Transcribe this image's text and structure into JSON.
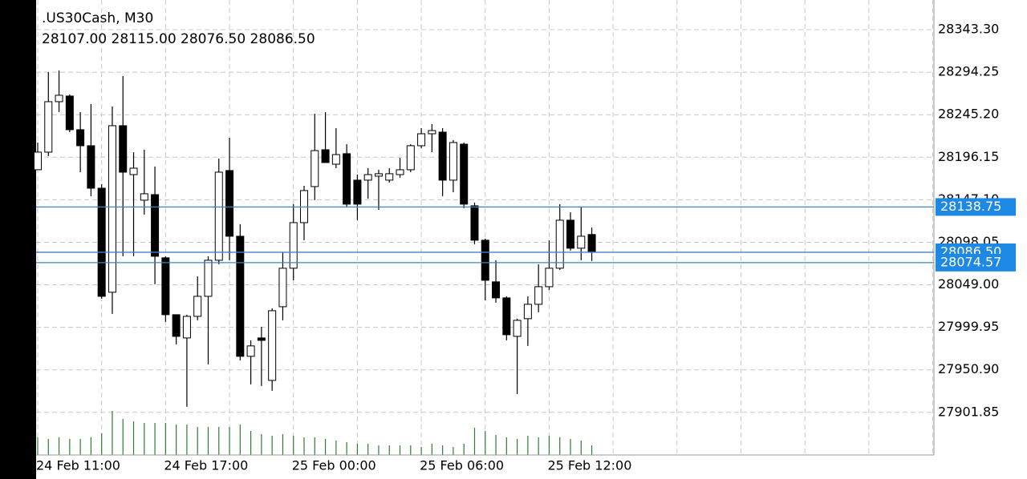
{
  "chart_data": {
    "type": "candlestick",
    "title": ".US30Cash, M30",
    "ohlc_text": "28107.00 28115.00 28076.50 28086.50",
    "categories": [
      "24 Feb 11:00",
      null,
      null,
      null,
      null,
      null,
      null,
      null,
      null,
      null,
      null,
      null,
      "24 Feb 17:00",
      null,
      null,
      null,
      null,
      null,
      null,
      null,
      null,
      null,
      null,
      null,
      "25 Feb 00:00",
      null,
      null,
      null,
      null,
      null,
      null,
      null,
      null,
      null,
      null,
      null,
      "25 Feb 06:00",
      null,
      null,
      null,
      null,
      null,
      null,
      null,
      null,
      null,
      null,
      null,
      "25 Feb 12:00",
      null,
      null,
      null,
      null
    ],
    "open": [
      28181.7,
      28202.0,
      28260.2,
      28266.7,
      28227.9,
      28209.4,
      28160.4,
      28040.4,
      28232.5,
      28176.1,
      28146.6,
      28153.0,
      28080.1,
      28014.5,
      27987.7,
      28012.6,
      28035.7,
      28077.3,
      28180.8,
      28105.0,
      27966.5,
      27987.7,
      27938.7,
      28023.7,
      28068.1,
      28120.7,
      28162.3,
      28204.8,
      28188.1,
      28200.2,
      28169.7,
      28169.7,
      28174.3,
      28169.7,
      28176.1,
      28181.7,
      28209.4,
      28223.2,
      28225.1,
      28169.7,
      28211.2,
      28140.1,
      28100.4,
      28052.4,
      28033.9,
      27989.5,
      28009.9,
      28026.5,
      28046.8,
      28068.1,
      28123.5,
      28091.2,
      28107.0
    ],
    "high": [
      28213.1,
      28294.4,
      28296.2,
      28268.5,
      28248.2,
      28257.4,
      28165.1,
      28254.6,
      28289.7,
      28202.0,
      28204.8,
      28185.4,
      28081.9,
      28014.5,
      28014.5,
      28058.8,
      28081.9,
      28194.6,
      28218.6,
      28118.9,
      27984.9,
      28000.6,
      28021.9,
      28086.5,
      28142.0,
      28163.2,
      28246.3,
      28248.2,
      28229.7,
      28211.2,
      28176.1,
      28183.5,
      28181.7,
      28183.5,
      28195.5,
      28211.2,
      28229.7,
      28234.3,
      28229.7,
      28215.9,
      28213.1,
      28143.8,
      28102.2,
      28077.3,
      28035.7,
      28009.9,
      28035.7,
      28072.7,
      28100.4,
      28142.0,
      28132.7,
      28139.2,
      28115.0
    ],
    "low": [
      28181.7,
      28197.4,
      28248.2,
      28225.1,
      28178.9,
      28151.2,
      28033.0,
      28015.4,
      28081.9,
      28081.9,
      28130.0,
      28049.6,
      28006.2,
      27980.3,
      27908.3,
      28008.0,
      27957.2,
      28072.7,
      28077.3,
      27961.8,
      27934.1,
      27932.3,
      27926.7,
      28008.0,
      28054.2,
      28100.4,
      28146.6,
      28190.0,
      28183.5,
      28139.2,
      28123.5,
      28148.4,
      28135.5,
      28166.9,
      28172.4,
      28178.9,
      28206.6,
      28202.0,
      28151.2,
      28155.8,
      28137.3,
      28095.8,
      28031.1,
      28028.3,
      27984.9,
      27923.0,
      27978.5,
      28017.3,
      28043.1,
      28066.2,
      28088.4,
      28077.3,
      28076.5
    ],
    "close": [
      28202.0,
      28260.2,
      28267.6,
      28227.9,
      28209.4,
      28160.4,
      28035.7,
      28232.5,
      28178.9,
      28183.5,
      28154.0,
      28081.9,
      28014.5,
      27989.5,
      28012.6,
      28035.7,
      28077.3,
      28178.9,
      28105.0,
      27966.5,
      27978.5,
      27984.9,
      28019.1,
      28068.1,
      28120.7,
      28157.7,
      28203.8,
      28190.0,
      28199.2,
      28142.0,
      28142.0,
      28176.1,
      28177.1,
      28177.1,
      28181.7,
      28209.4,
      28223.2,
      28226.9,
      28169.7,
      28213.1,
      28142.0,
      28100.4,
      28054.2,
      28033.9,
      27991.4,
      28008.0,
      28026.5,
      28046.8,
      28068.1,
      28123.5,
      28091.2,
      28105.0,
      28086.5
    ],
    "volume": [
      22,
      20,
      22,
      20,
      20,
      22,
      27,
      55,
      45,
      42,
      40,
      40,
      40,
      38,
      38,
      35,
      35,
      35,
      35,
      38,
      30,
      26,
      24,
      26,
      24,
      22,
      22,
      20,
      18,
      16,
      14,
      14,
      12,
      12,
      12,
      12,
      10,
      14,
      12,
      10,
      14,
      34,
      30,
      25,
      22,
      20,
      24,
      22,
      24,
      22,
      20,
      18,
      12
    ],
    "up_color": "#ffffff",
    "down_color": "#000000",
    "volume_color": "#2e7d32",
    "line_color": "#3b86c8",
    "grid": true,
    "ylim": [
      27852.7,
      28377.5
    ],
    "yticks": [
      {
        "value": 28343.3,
        "label": "28343.30"
      },
      {
        "value": 28294.25,
        "label": "28294.25"
      },
      {
        "value": 28245.2,
        "label": "28245.20"
      },
      {
        "value": 28196.15,
        "label": "28196.15"
      },
      {
        "value": 28147.1,
        "label": "28147.10"
      },
      {
        "value": 28098.05,
        "label": "28098.05"
      },
      {
        "value": 28049,
        "label": "28049.00"
      },
      {
        "value": 27999.95,
        "label": "27999.95"
      },
      {
        "value": 27950.9,
        "label": "27950.90"
      },
      {
        "value": 27901.85,
        "label": "27901.85"
      }
    ],
    "price_lines": [
      {
        "value": 28138.75,
        "label": "28138.75"
      },
      {
        "value": 28086.5,
        "label": "28086.50"
      },
      {
        "value": 28074.57,
        "label": "28074.57"
      }
    ]
  }
}
